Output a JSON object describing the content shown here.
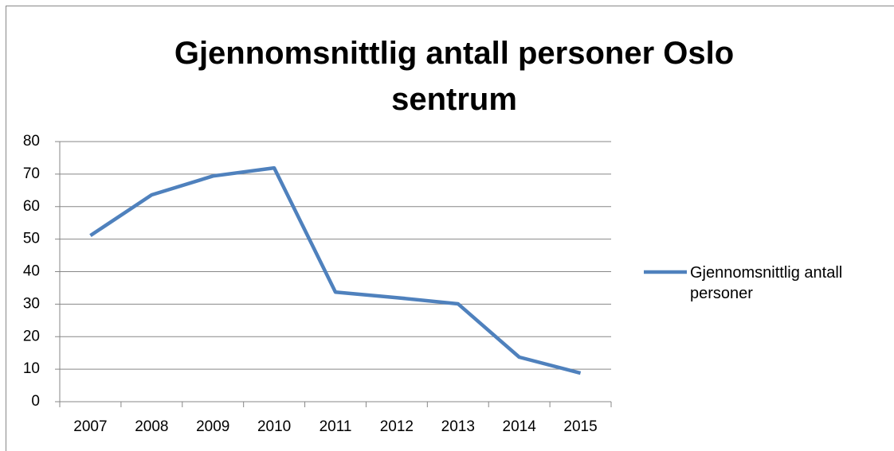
{
  "chart_data": {
    "type": "line",
    "title": "Gjennomsnittlig antall personer Oslo sentrum",
    "categories": [
      "2007",
      "2008",
      "2009",
      "2010",
      "2011",
      "2012",
      "2013",
      "2014",
      "2015"
    ],
    "series": [
      {
        "name": "Gjennomsnittlig antall personer",
        "color": "#4f81bd",
        "values": [
          51.1,
          63.6,
          69.4,
          71.9,
          33.7,
          32,
          30.1,
          13.7,
          8.8
        ]
      }
    ],
    "ylim": [
      0,
      80
    ],
    "yticks": [
      0,
      10,
      20,
      30,
      40,
      50,
      60,
      70,
      80
    ],
    "grid": true,
    "legend": "right"
  }
}
